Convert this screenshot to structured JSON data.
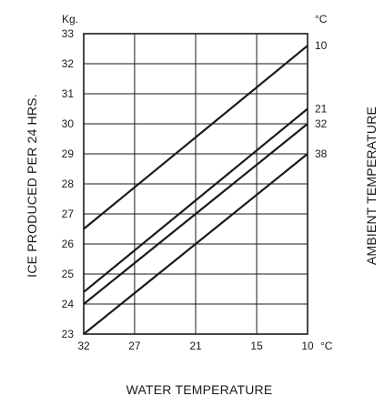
{
  "chart_data": {
    "type": "line",
    "title": "",
    "xlabel": "WATER TEMPERATURE",
    "ylabel": "ICE PRODUCED PER 24 HRS.",
    "y2label": "AMBIENT TEMPERATURE",
    "y_unit": "Kg.",
    "x_unit": "°C",
    "y2_unit": "°C",
    "x_reversed": true,
    "xlim": [
      32,
      10
    ],
    "ylim": [
      23,
      33
    ],
    "x_ticks": [
      32,
      27,
      21,
      15,
      10
    ],
    "y_ticks": [
      23,
      24,
      25,
      26,
      27,
      28,
      29,
      30,
      31,
      32,
      33
    ],
    "grid": true,
    "legend": "none",
    "series": [
      {
        "name": "10",
        "x": [
          32,
          10
        ],
        "y": [
          26.5,
          32.6
        ]
      },
      {
        "name": "21",
        "x": [
          32,
          10
        ],
        "y": [
          24.4,
          30.5
        ]
      },
      {
        "name": "32",
        "x": [
          32,
          10
        ],
        "y": [
          24.0,
          30.0
        ]
      },
      {
        "name": "38",
        "x": [
          32,
          10
        ],
        "y": [
          23.0,
          29.0
        ]
      }
    ]
  }
}
